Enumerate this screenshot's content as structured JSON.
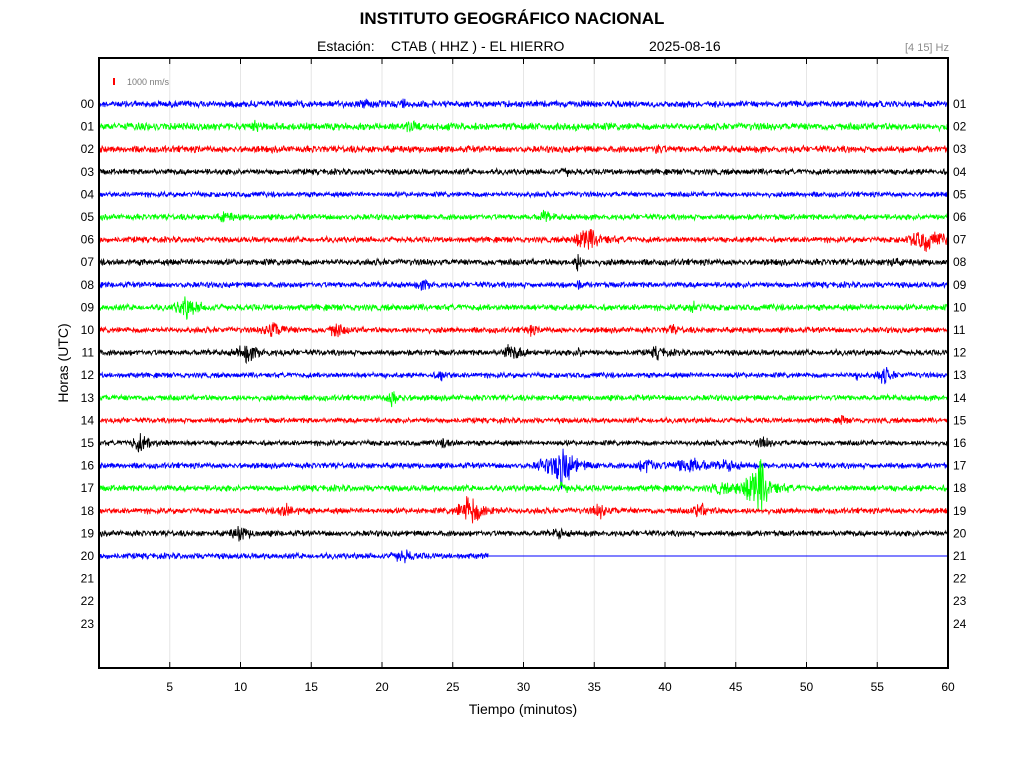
{
  "header": {
    "title": "INSTITUTO GEOGRÁFICO NACIONAL",
    "station_label": "Estación:",
    "station": "CTAB ( HHZ ) - EL HIERRO",
    "date": "2025-08-16",
    "freq_band": "[4 15] Hz"
  },
  "chart_data": {
    "type": "line",
    "title": "INSTITUTO GEOGRÁFICO NACIONAL",
    "xlabel": "Tiempo (minutos)",
    "ylabel": "Horas (UTC)",
    "xlim": [
      0,
      60
    ],
    "x_ticks": [
      5,
      10,
      15,
      20,
      25,
      30,
      35,
      40,
      45,
      50,
      55,
      60
    ],
    "left_hour_labels": [
      "00",
      "01",
      "02",
      "03",
      "04",
      "05",
      "06",
      "07",
      "08",
      "09",
      "10",
      "11",
      "12",
      "13",
      "14",
      "15",
      "16",
      "17",
      "18",
      "19",
      "20",
      "21",
      "22",
      "23"
    ],
    "right_hour_labels": [
      "01",
      "02",
      "03",
      "04",
      "05",
      "06",
      "07",
      "08",
      "09",
      "10",
      "11",
      "12",
      "13",
      "14",
      "15",
      "16",
      "17",
      "18",
      "19",
      "20",
      "21",
      "22",
      "23",
      "24"
    ],
    "scale_bar": {
      "label": "1000 nm/s",
      "color": "#ff0000"
    },
    "grid": true,
    "trace_colors": [
      "#0000ff",
      "#00ff00",
      "#ff0000",
      "#000000"
    ],
    "recorded_hours": 21,
    "last_trace_end_minute": 27.5,
    "traces": [
      {
        "hour": 0,
        "color": "#0000ff",
        "amplitude": 0.25,
        "events": [
          [
            19,
            0.4,
            0.4
          ],
          [
            21.5,
            0.3,
            0.4
          ]
        ]
      },
      {
        "hour": 1,
        "color": "#00ff00",
        "amplitude": 0.28,
        "events": [
          [
            11,
            0.3,
            0.4
          ],
          [
            22,
            0.3,
            0.5
          ]
        ]
      },
      {
        "hour": 2,
        "color": "#ff0000",
        "amplitude": 0.26,
        "events": [
          [
            39.5,
            0.45,
            0.3
          ]
        ]
      },
      {
        "hour": 3,
        "color": "#000000",
        "amplitude": 0.22,
        "events": [
          [
            33,
            0.3,
            0.3
          ]
        ]
      },
      {
        "hour": 4,
        "color": "#0000ff",
        "amplitude": 0.2,
        "events": []
      },
      {
        "hour": 5,
        "color": "#00ff00",
        "amplitude": 0.22,
        "events": [
          [
            9,
            0.3,
            0.6
          ],
          [
            31.5,
            0.35,
            0.5
          ]
        ]
      },
      {
        "hour": 6,
        "color": "#ff0000",
        "amplitude": 0.22,
        "events": [
          [
            34.5,
            0.8,
            1.2
          ],
          [
            58.5,
            0.7,
            1.5
          ]
        ]
      },
      {
        "hour": 7,
        "color": "#000000",
        "amplitude": 0.24,
        "events": [
          [
            33.8,
            0.6,
            0.3
          ],
          [
            56,
            0.3,
            0.4
          ]
        ]
      },
      {
        "hour": 8,
        "color": "#0000ff",
        "amplitude": 0.22,
        "events": [
          [
            23,
            0.3,
            0.6
          ],
          [
            33.8,
            0.3,
            0.3
          ]
        ]
      },
      {
        "hour": 9,
        "color": "#00ff00",
        "amplitude": 0.24,
        "events": [
          [
            6.2,
            0.7,
            0.9
          ],
          [
            42,
            0.3,
            0.5
          ]
        ]
      },
      {
        "hour": 10,
        "color": "#ff0000",
        "amplitude": 0.22,
        "events": [
          [
            12.3,
            0.6,
            0.8
          ],
          [
            16.8,
            0.5,
            0.6
          ],
          [
            30.5,
            0.3,
            0.5
          ],
          [
            40.5,
            0.3,
            0.5
          ]
        ]
      },
      {
        "hour": 11,
        "color": "#000000",
        "amplitude": 0.22,
        "events": [
          [
            10.5,
            0.6,
            1.0
          ],
          [
            29.2,
            0.55,
            0.8
          ],
          [
            34,
            0.3,
            0.3
          ],
          [
            39.5,
            0.4,
            0.6
          ]
        ]
      },
      {
        "hour": 12,
        "color": "#0000ff",
        "amplitude": 0.2,
        "events": [
          [
            24.2,
            0.3,
            0.5
          ],
          [
            53.5,
            0.4,
            0.3
          ],
          [
            55.5,
            0.6,
            0.6
          ]
        ]
      },
      {
        "hour": 13,
        "color": "#00ff00",
        "amplitude": 0.22,
        "events": [
          [
            20.8,
            0.5,
            0.6
          ]
        ]
      },
      {
        "hour": 14,
        "color": "#ff0000",
        "amplitude": 0.2,
        "events": [
          [
            52.5,
            0.3,
            0.3
          ]
        ]
      },
      {
        "hour": 15,
        "color": "#000000",
        "amplitude": 0.2,
        "events": [
          [
            3,
            0.6,
            0.9
          ],
          [
            24.5,
            0.3,
            0.5
          ],
          [
            47,
            0.3,
            0.6
          ]
        ]
      },
      {
        "hour": 16,
        "color": "#0000ff",
        "amplitude": 0.22,
        "events": [
          [
            31.5,
            0.4,
            0.8
          ],
          [
            32.8,
            1.6,
            0.9
          ],
          [
            38.8,
            0.5,
            0.9
          ],
          [
            41.8,
            0.6,
            1.2
          ],
          [
            44.5,
            0.3,
            0.8
          ]
        ]
      },
      {
        "hour": 17,
        "color": "#00ff00",
        "amplitude": 0.24,
        "events": [
          [
            32.8,
            0.3,
            0.5
          ],
          [
            44,
            0.3,
            1.0
          ],
          [
            46.2,
            1.1,
            1.2
          ],
          [
            46.8,
            1.4,
            0.6
          ]
        ]
      },
      {
        "hour": 18,
        "color": "#ff0000",
        "amplitude": 0.22,
        "events": [
          [
            13.2,
            0.4,
            0.8
          ],
          [
            26.3,
            1.0,
            1.2
          ],
          [
            35.5,
            0.4,
            0.8
          ],
          [
            42.5,
            0.45,
            0.7
          ]
        ]
      },
      {
        "hour": 19,
        "color": "#000000",
        "amplitude": 0.22,
        "events": [
          [
            10,
            0.45,
            0.8
          ],
          [
            32.5,
            0.3,
            0.5
          ]
        ]
      },
      {
        "hour": 20,
        "color": "#0000ff",
        "amplitude": 0.22,
        "events": [
          [
            21.5,
            0.4,
            0.8
          ]
        ]
      }
    ]
  }
}
